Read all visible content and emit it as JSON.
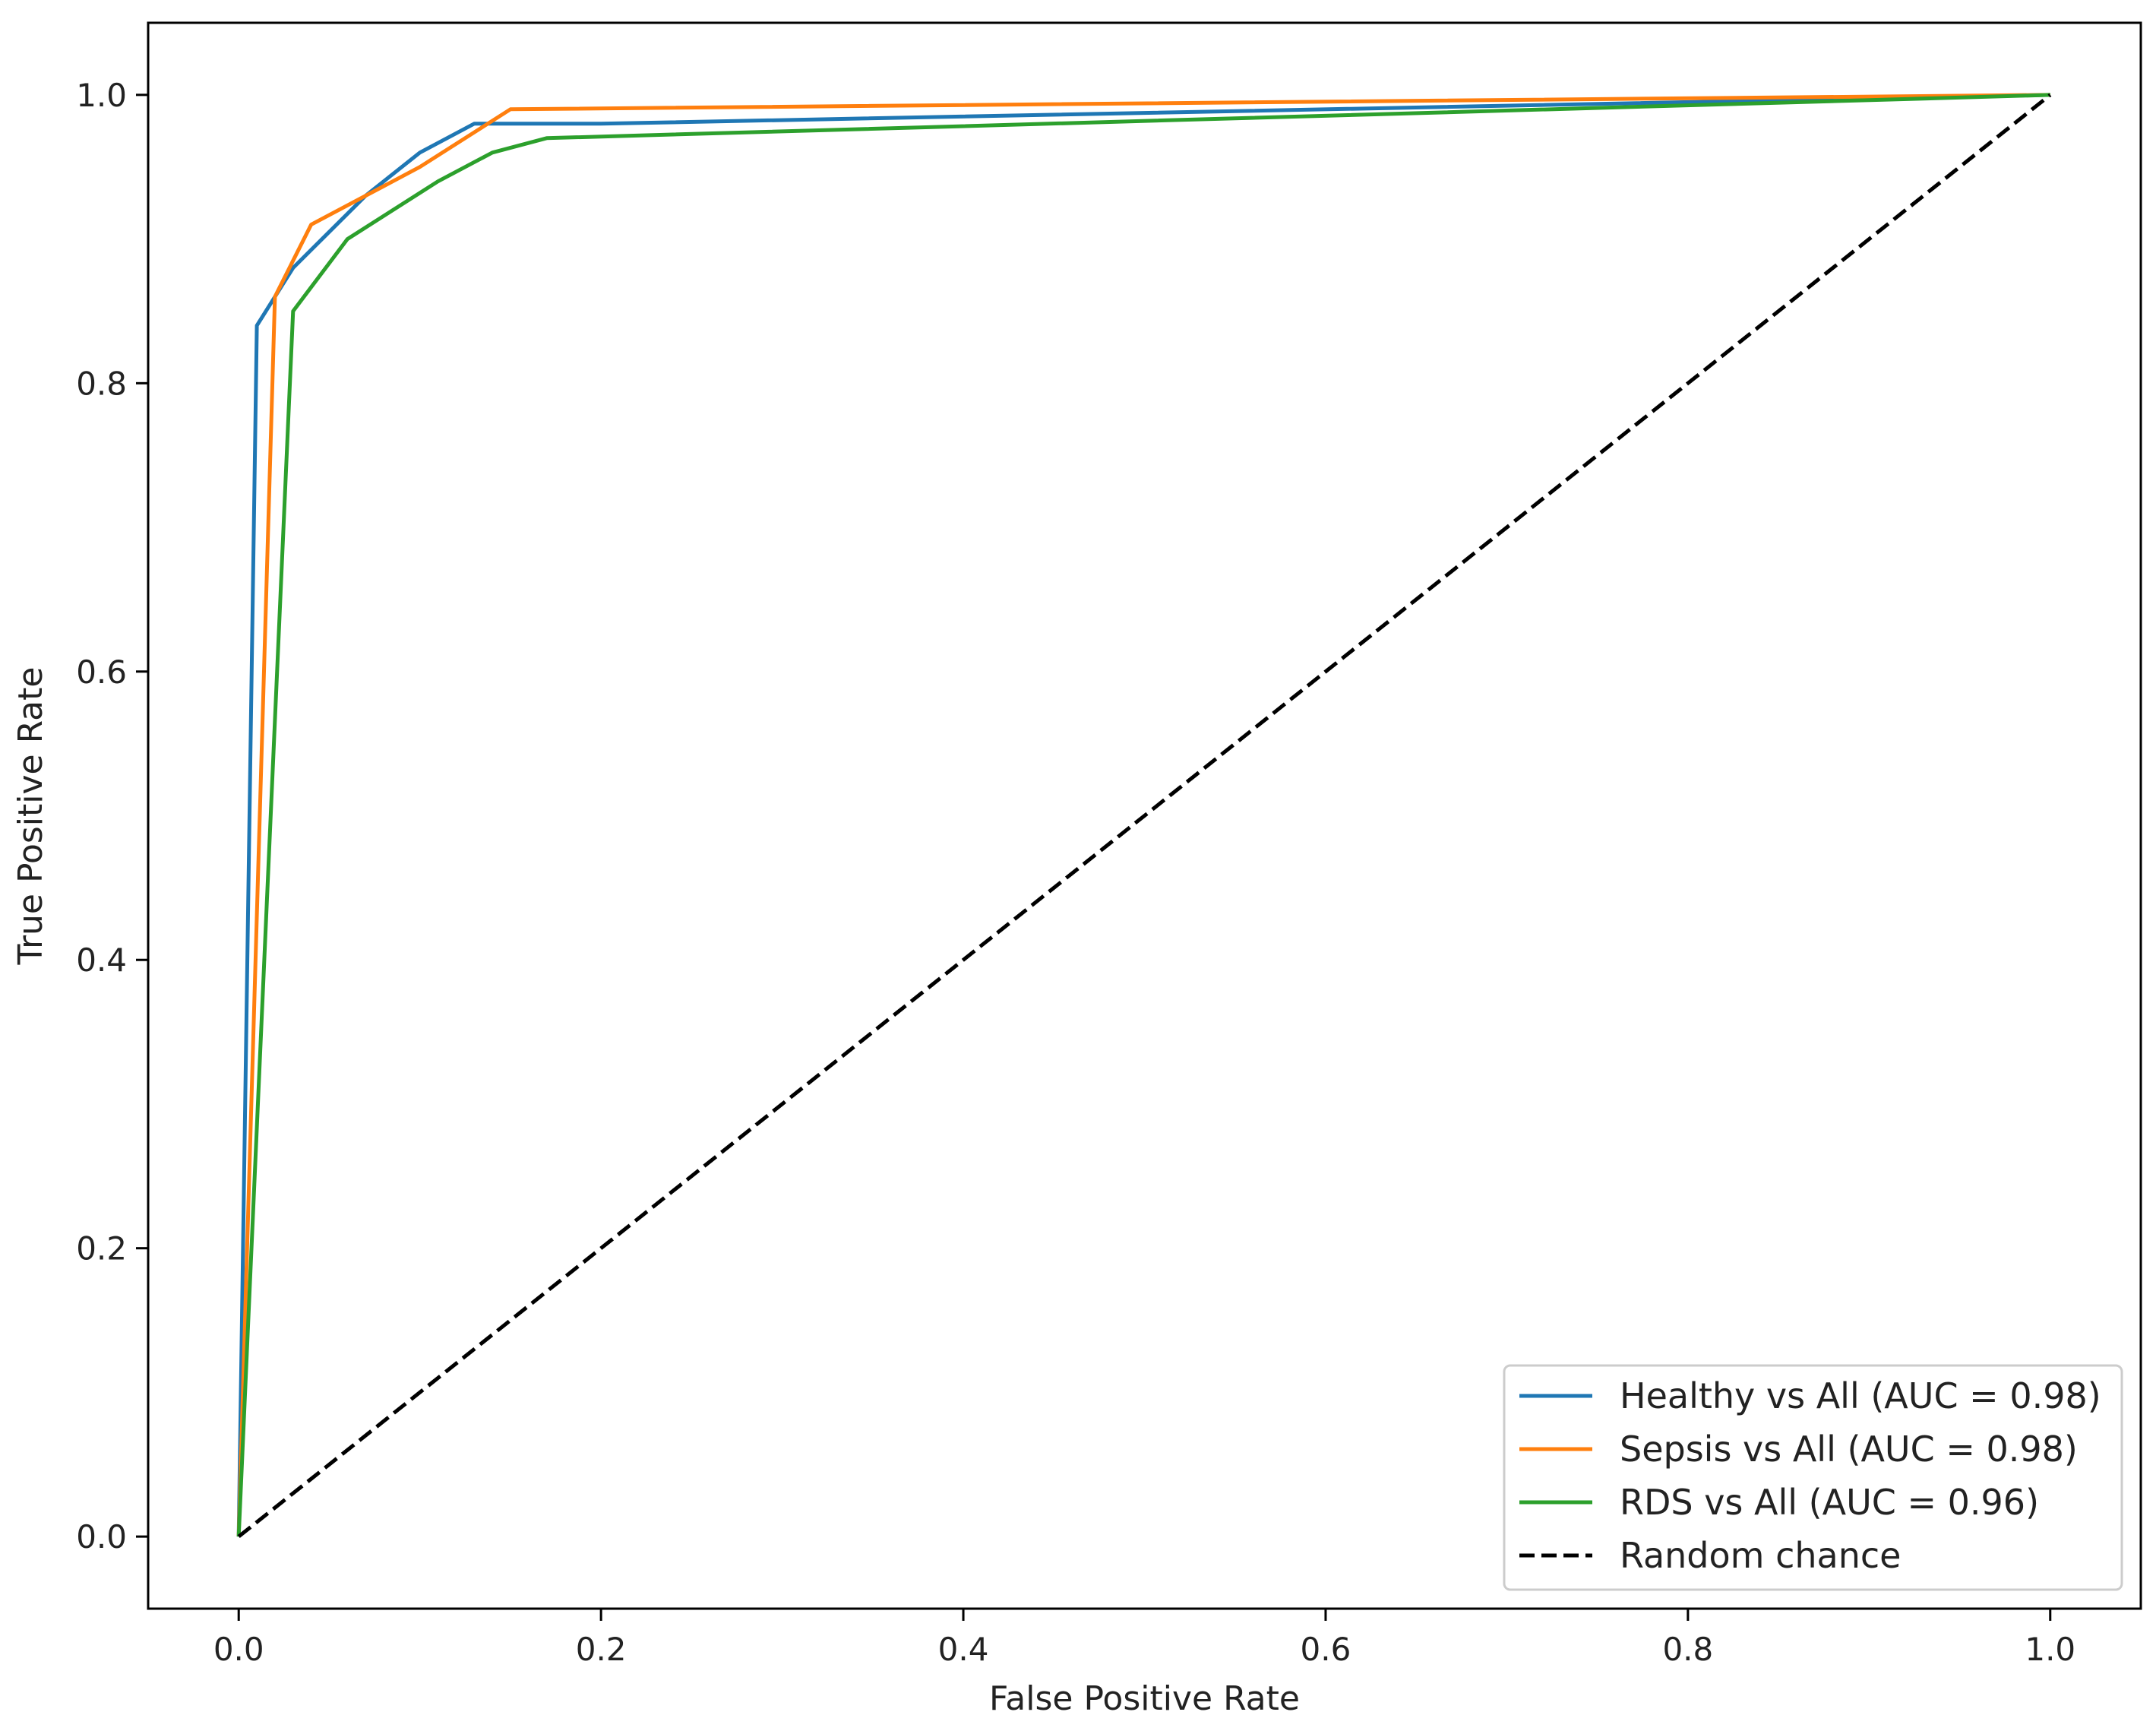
{
  "chart_data": {
    "type": "line",
    "title": "",
    "xlabel": "False Positive Rate",
    "ylabel": "True Positive Rate",
    "xlim": [
      -0.05,
      1.05
    ],
    "ylim": [
      -0.05,
      1.05
    ],
    "xticks": [
      0.0,
      0.2,
      0.4,
      0.6,
      0.8,
      1.0
    ],
    "yticks": [
      0.0,
      0.2,
      0.4,
      0.6,
      0.8,
      1.0
    ],
    "xtick_labels": [
      "0.0",
      "0.2",
      "0.4",
      "0.6",
      "0.8",
      "1.0"
    ],
    "ytick_labels": [
      "0.0",
      "0.2",
      "0.4",
      "0.6",
      "0.8",
      "1.0"
    ],
    "grid": false,
    "legend_position": "bottom-right",
    "series": [
      {
        "name": "Healthy vs All (AUC = 0.98)",
        "color": "#1f77b4",
        "style": "solid",
        "x": [
          0.0,
          0.01,
          0.03,
          0.07,
          0.1,
          0.13,
          0.2,
          1.0
        ],
        "y": [
          0.0,
          0.84,
          0.88,
          0.93,
          0.96,
          0.98,
          0.98,
          1.0
        ]
      },
      {
        "name": "Sepsis vs All (AUC = 0.98)",
        "color": "#ff7f0e",
        "style": "solid",
        "x": [
          0.0,
          0.02,
          0.04,
          0.1,
          0.15,
          1.0
        ],
        "y": [
          0.0,
          0.86,
          0.91,
          0.95,
          0.99,
          1.0
        ]
      },
      {
        "name": "RDS vs All (AUC = 0.96)",
        "color": "#2ca02c",
        "style": "solid",
        "x": [
          0.0,
          0.03,
          0.06,
          0.11,
          0.14,
          0.17,
          1.0
        ],
        "y": [
          0.0,
          0.85,
          0.9,
          0.94,
          0.96,
          0.97,
          1.0
        ]
      },
      {
        "name": "Random chance",
        "color": "#000000",
        "style": "dashed",
        "x": [
          0.0,
          1.0
        ],
        "y": [
          0.0,
          1.0
        ]
      }
    ]
  }
}
